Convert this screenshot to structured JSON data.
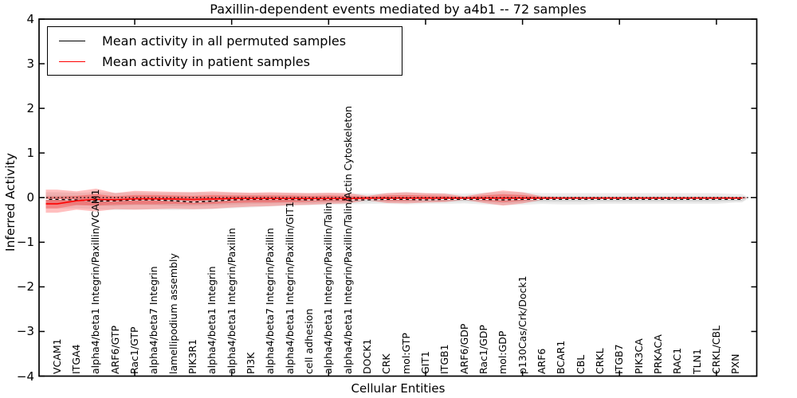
{
  "title": "Paxillin-dependent events mediated by a4b1 -- 72 samples",
  "legend": {
    "items": [
      {
        "label": "Mean activity in all permuted samples",
        "color": "#000000"
      },
      {
        "label": "Mean activity in patient samples",
        "color": "#ff0000"
      }
    ]
  },
  "axes": {
    "ylabel": "Inferred Activity",
    "xlabel": "Cellular Entities",
    "ytick_labels": [
      "4",
      "3",
      "2",
      "1",
      "0",
      "−1",
      "−2",
      "−3",
      "−4"
    ],
    "ytick_values": [
      4,
      3,
      2,
      1,
      0,
      -1,
      -2,
      -3,
      -4
    ]
  },
  "chart_data": {
    "type": "line",
    "title": "Paxillin-dependent events mediated by a4b1 -- 72 samples",
    "xlabel": "Cellular Entities",
    "ylabel": "Inferred Activity",
    "ylim": [
      -4,
      4
    ],
    "grid": false,
    "legend_position": "upper left",
    "categories": [
      "VCAM1",
      "ITGA4",
      "alpha4/beta1 Integrin/Paxillin/VCAM1",
      "ARF6/GTP",
      "Rac1/GTP",
      "alpha4/beta7 Integrin",
      "lamellipodium assembly",
      "PIK3R1",
      "alpha4/beta1 Integrin",
      "alpha4/beta1 Integrin/Paxillin",
      "PI3K",
      "alpha4/beta7 Integrin/Paxillin",
      "alpha4/beta1 Integrin/Paxillin/GIT1",
      "cell adhesion",
      "alpha4/beta1 Integrin/Paxillin/Talin",
      "alpha4/beta1 Integrin/Paxillin/Talin/Actin Cytoskeleton",
      "DOCK1",
      "CRK",
      "mol:GTP",
      "GIT1",
      "ITGB1",
      "ARF6/GDP",
      "Rac1/GDP",
      "mol:GDP",
      "p130Cas/Crk/Dock1",
      "ARF6",
      "BCAR1",
      "CBL",
      "CRKL",
      "ITGB7",
      "PIK3CA",
      "PRKACA",
      "RAC1",
      "TLN1",
      "CRKL/CBL",
      "PXN"
    ],
    "x_major_tick_indices": [
      4,
      9,
      14,
      19,
      24,
      29,
      34
    ],
    "series": [
      {
        "name": "Mean activity in all permuted samples",
        "color": "#000000",
        "style": "solid-with-white-dash-overlay",
        "values": [
          -0.04,
          -0.05,
          -0.08,
          -0.07,
          -0.05,
          -0.05,
          -0.07,
          -0.1,
          -0.08,
          -0.05,
          -0.04,
          -0.04,
          -0.04,
          -0.05,
          -0.04,
          -0.05,
          -0.05,
          -0.04,
          -0.04,
          -0.05,
          -0.04,
          -0.04,
          -0.04,
          -0.05,
          -0.04,
          -0.04,
          -0.04,
          -0.04,
          -0.04,
          -0.04,
          -0.04,
          -0.04,
          -0.04,
          -0.04,
          -0.04,
          -0.04
        ]
      },
      {
        "name": "Mean activity in patient samples",
        "color": "#ff0000",
        "style": "solid",
        "values": [
          -0.14,
          -0.07,
          -0.04,
          -0.05,
          -0.03,
          -0.03,
          -0.03,
          -0.04,
          -0.03,
          -0.02,
          -0.02,
          -0.02,
          -0.02,
          -0.02,
          -0.02,
          -0.02,
          -0.01,
          -0.01,
          -0.01,
          -0.01,
          -0.01,
          -0.01,
          -0.01,
          -0.01,
          -0.01,
          -0.01,
          -0.01,
          -0.01,
          -0.01,
          -0.01,
          -0.01,
          -0.01,
          -0.01,
          -0.01,
          -0.01,
          -0.01
        ]
      }
    ],
    "bands": [
      {
        "name": "permuted-envelope-outer",
        "color": "#000000",
        "opacity": 0.075,
        "upper": [
          0.12,
          0.11,
          0.12,
          0.11,
          0.12,
          0.11,
          0.11,
          0.12,
          0.11,
          0.11,
          0.1,
          0.1,
          0.1,
          0.1,
          0.1,
          0.1,
          0.09,
          0.1,
          0.12,
          0.1,
          0.1,
          0.09,
          0.11,
          0.13,
          0.12,
          0.1,
          0.1,
          0.1,
          0.1,
          0.1,
          0.1,
          0.1,
          0.1,
          0.1,
          0.1,
          0.08
        ],
        "lower": [
          -0.25,
          -0.24,
          -0.26,
          -0.28,
          -0.27,
          -0.27,
          -0.28,
          -0.27,
          -0.26,
          -0.24,
          -0.22,
          -0.2,
          -0.18,
          -0.17,
          -0.16,
          -0.15,
          -0.14,
          -0.14,
          -0.15,
          -0.14,
          -0.14,
          -0.13,
          -0.15,
          -0.17,
          -0.16,
          -0.14,
          -0.15,
          -0.15,
          -0.14,
          -0.14,
          -0.14,
          -0.14,
          -0.14,
          -0.14,
          -0.14,
          -0.11
        ]
      },
      {
        "name": "permuted-envelope-inner",
        "color": "#000000",
        "opacity": 0.065,
        "upper": [
          0.05,
          0.04,
          0.03,
          0.03,
          0.04,
          0.04,
          0.03,
          0.02,
          0.03,
          0.04,
          0.04,
          0.04,
          0.04,
          0.03,
          0.04,
          0.03,
          0.03,
          0.04,
          0.05,
          0.03,
          0.04,
          0.03,
          0.04,
          0.05,
          0.05,
          0.04,
          0.04,
          0.04,
          0.04,
          0.04,
          0.04,
          0.04,
          0.04,
          0.04,
          0.04,
          0.03
        ],
        "lower": [
          -0.16,
          -0.16,
          -0.18,
          -0.19,
          -0.17,
          -0.17,
          -0.19,
          -0.19,
          -0.18,
          -0.16,
          -0.14,
          -0.13,
          -0.12,
          -0.12,
          -0.11,
          -0.11,
          -0.1,
          -0.1,
          -0.1,
          -0.1,
          -0.1,
          -0.09,
          -0.1,
          -0.12,
          -0.11,
          -0.1,
          -0.1,
          -0.1,
          -0.1,
          -0.1,
          -0.1,
          -0.1,
          -0.1,
          -0.1,
          -0.1,
          -0.08
        ]
      },
      {
        "name": "patient-envelope-outer",
        "color": "#ff0000",
        "opacity": 0.25,
        "upper": [
          0.18,
          0.14,
          0.2,
          0.1,
          0.15,
          0.14,
          0.13,
          0.12,
          0.14,
          0.12,
          0.11,
          0.12,
          0.11,
          0.1,
          0.11,
          0.1,
          0.04,
          0.1,
          0.12,
          0.1,
          0.09,
          0.03,
          0.1,
          0.16,
          0.12,
          0.03,
          0.02,
          0.02,
          0.02,
          0.02,
          0.02,
          0.02,
          0.02,
          0.02,
          0.02,
          0.02
        ],
        "lower": [
          -0.34,
          -0.27,
          -0.31,
          -0.26,
          -0.27,
          -0.26,
          -0.25,
          -0.26,
          -0.25,
          -0.22,
          -0.2,
          -0.19,
          -0.17,
          -0.16,
          -0.14,
          -0.13,
          -0.06,
          -0.12,
          -0.13,
          -0.11,
          -0.1,
          -0.05,
          -0.12,
          -0.18,
          -0.13,
          -0.05,
          -0.03,
          -0.03,
          -0.03,
          -0.03,
          -0.03,
          -0.03,
          -0.03,
          -0.03,
          -0.03,
          -0.03
        ]
      },
      {
        "name": "patient-envelope-inner",
        "color": "#ff0000",
        "opacity": 0.25,
        "upper": [
          0.02,
          0.04,
          0.08,
          0.03,
          0.06,
          0.06,
          0.05,
          0.04,
          0.06,
          0.05,
          0.05,
          0.05,
          0.05,
          0.04,
          0.05,
          0.04,
          0.02,
          0.05,
          0.06,
          0.05,
          0.04,
          0.01,
          0.05,
          0.08,
          0.06,
          0.01,
          0.005,
          0.005,
          0.005,
          0.005,
          0.005,
          0.005,
          0.005,
          0.005,
          0.005,
          0.005
        ],
        "lower": [
          -0.24,
          -0.17,
          -0.18,
          -0.16,
          -0.15,
          -0.15,
          -0.14,
          -0.15,
          -0.14,
          -0.12,
          -0.11,
          -0.11,
          -0.1,
          -0.09,
          -0.08,
          -0.08,
          -0.04,
          -0.07,
          -0.07,
          -0.06,
          -0.06,
          -0.03,
          -0.07,
          -0.1,
          -0.07,
          -0.03,
          -0.02,
          -0.02,
          -0.02,
          -0.02,
          -0.02,
          -0.02,
          -0.02,
          -0.02,
          -0.02,
          -0.02
        ]
      }
    ],
    "zero_line": {
      "y": 0,
      "style": "dotted",
      "color": "#000000"
    },
    "overlay_dashed_line": {
      "follows": "Mean activity in all permuted samples",
      "color": "#ffffff",
      "style": "dashed"
    }
  },
  "colors": {
    "frame": "#000000",
    "background": "#ffffff",
    "patient": "#ff0000",
    "permuted": "#000000"
  }
}
